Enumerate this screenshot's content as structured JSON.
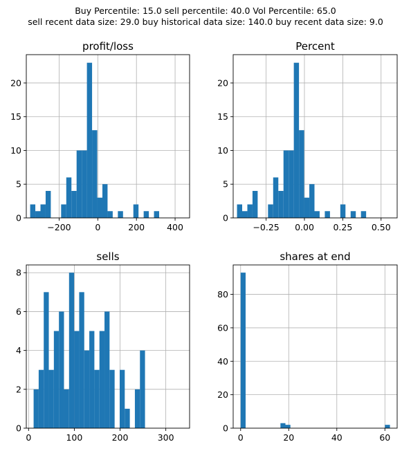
{
  "suptitle": {
    "line1": "Buy Percentile: 15.0 sell percentile: 40.0 Vol Percentile: 65.0",
    "line2": "sell recent data size: 29.0 buy historical data size: 140.0 buy recent data size: 9.0"
  },
  "colors": {
    "bar": "#1f77b4",
    "grid": "#b0b0b0",
    "axis": "#000000"
  },
  "chart_data": [
    {
      "type": "bar",
      "title": "profit/loss",
      "xlim": [
        -370,
        475
      ],
      "ylim": [
        0,
        24.2
      ],
      "xticks": [
        -200,
        0,
        200,
        400
      ],
      "xtick_labels": [
        "−200",
        "0",
        "200",
        "400"
      ],
      "yticks": [
        0,
        5,
        10,
        15,
        20
      ],
      "bin_start": -350,
      "bin_width": 26.7,
      "values": [
        2,
        1,
        2,
        4,
        0,
        0,
        2,
        6,
        4,
        10,
        10,
        23,
        13,
        3,
        5,
        1,
        0,
        1,
        0,
        0,
        2,
        0,
        1,
        0,
        1
      ],
      "grid": true
    },
    {
      "type": "bar",
      "title": "Percent",
      "xlim": [
        -0.465,
        0.605
      ],
      "ylim": [
        0,
        24.2
      ],
      "xticks": [
        -0.25,
        0,
        0.25,
        0.5
      ],
      "xtick_labels": [
        "−0.25",
        "0.00",
        "0.25",
        "0.50"
      ],
      "yticks": [
        0,
        5,
        10,
        15,
        20
      ],
      "bin_start": -0.44,
      "bin_width": 0.0337,
      "values": [
        2,
        1,
        2,
        4,
        0,
        0,
        2,
        6,
        4,
        10,
        10,
        23,
        13,
        3,
        5,
        1,
        0,
        1,
        0,
        0,
        2,
        0,
        1,
        0,
        1
      ],
      "grid": true
    },
    {
      "type": "bar",
      "title": "sells",
      "xlim": [
        -5,
        352
      ],
      "ylim": [
        0,
        8.4
      ],
      "xticks": [
        0,
        100,
        200,
        300
      ],
      "xtick_labels": [
        "0",
        "100",
        "200",
        "300"
      ],
      "yticks": [
        0,
        2,
        4,
        6,
        8
      ],
      "bin_start": 11,
      "bin_width": 11.07,
      "values": [
        2,
        3,
        7,
        3,
        5,
        6,
        2,
        8,
        5,
        7,
        4,
        5,
        3,
        5,
        6,
        3,
        0,
        3,
        1,
        0,
        2,
        4
      ],
      "skip_first_bin": false,
      "grid": true
    },
    {
      "type": "bar",
      "title": "shares at end",
      "xlim": [
        -3.1,
        65.1
      ],
      "ylim": [
        0,
        97.6
      ],
      "xticks": [
        0,
        20,
        40,
        60
      ],
      "xtick_labels": [
        "0",
        "20",
        "40",
        "60"
      ],
      "yticks": [
        0,
        20,
        40,
        60,
        80
      ],
      "bin_start": 0,
      "bin_width": 2.07,
      "values": [
        93,
        0,
        0,
        0,
        0,
        0,
        0,
        0,
        3,
        2,
        0,
        0,
        0,
        0,
        0,
        0,
        0,
        0,
        0,
        0,
        0,
        0,
        0,
        0,
        0,
        0,
        0,
        0,
        0,
        2
      ],
      "grid": true
    }
  ]
}
